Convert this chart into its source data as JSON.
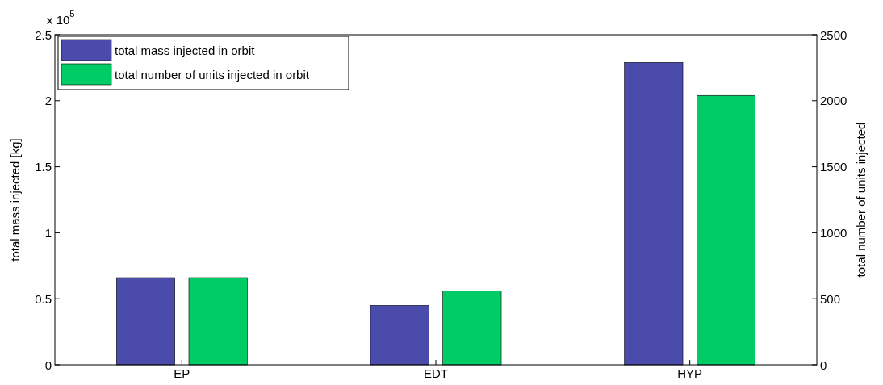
{
  "chart_data": {
    "type": "bar",
    "categories": [
      "EP",
      "EDT",
      "HYP"
    ],
    "series": [
      {
        "name": "total mass injected in orbit",
        "color": "#4b4bab",
        "values": [
          0.66,
          0.45,
          2.29
        ]
      },
      {
        "name": "total number of units injected in orbit",
        "color": "#00cc66",
        "values": [
          660,
          560,
          2040
        ],
        "axis": "y2"
      }
    ],
    "ylabel": "total mass injected [kg]",
    "y2label": "total number of units injected",
    "ylim": [
      0,
      2.5
    ],
    "yticks": [
      0,
      0.5,
      1,
      1.5,
      2,
      2.5
    ],
    "y2lim": [
      0,
      2500
    ],
    "y2ticks": [
      0,
      500,
      1000,
      1500,
      2000,
      2500
    ],
    "annotations": [
      "x 10$^{5}$"
    ],
    "legend": "top left",
    "grid": false
  }
}
